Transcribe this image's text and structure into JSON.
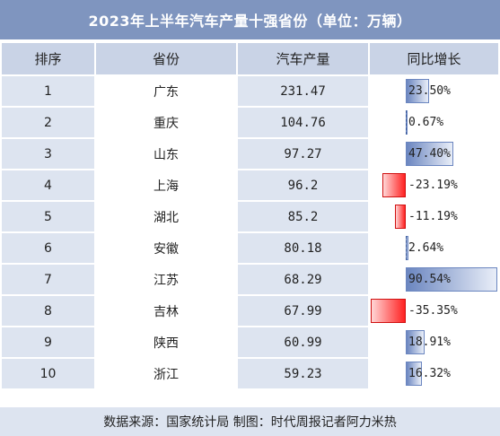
{
  "title": "2023年上半年汽车产量十强省份（单位：万辆）",
  "headers": {
    "rank": "排序",
    "province": "省份",
    "output": "汽车产量",
    "growth": "同比增长"
  },
  "chart_data": {
    "type": "table",
    "title": "2023年上半年汽车产量十强省份（单位：万辆）",
    "columns": [
      "排序",
      "省份",
      "汽车产量",
      "同比增长"
    ],
    "rows": [
      {
        "rank": "1",
        "province": "广东",
        "output": "231.47",
        "growth_label": "23.50%",
        "growth": 23.5
      },
      {
        "rank": "2",
        "province": "重庆",
        "output": "104.76",
        "growth_label": "0.67%",
        "growth": 0.67
      },
      {
        "rank": "3",
        "province": "山东",
        "output": "97.27",
        "growth_label": "47.40%",
        "growth": 47.4
      },
      {
        "rank": "4",
        "province": "上海",
        "output": "96.2",
        "growth_label": "-23.19%",
        "growth": -23.19
      },
      {
        "rank": "5",
        "province": "湖北",
        "output": "85.2",
        "growth_label": "-11.19%",
        "growth": -11.19
      },
      {
        "rank": "6",
        "province": "安徽",
        "output": "80.18",
        "growth_label": "2.64%",
        "growth": 2.64
      },
      {
        "rank": "7",
        "province": "江苏",
        "output": "68.29",
        "growth_label": "90.54%",
        "growth": 90.54
      },
      {
        "rank": "8",
        "province": "吉林",
        "output": "67.99",
        "growth_label": "-35.35%",
        "growth": -35.35
      },
      {
        "rank": "9",
        "province": "陕西",
        "output": "60.99",
        "growth_label": "18.91%",
        "growth": 18.91
      },
      {
        "rank": "10",
        "province": "浙江",
        "output": "59.23",
        "growth_label": "16.32%",
        "growth": 16.32
      }
    ],
    "colors": {
      "positive_bar": "#6b86c0",
      "negative_bar": "#ff2222",
      "header_bg": "#7f95bf",
      "column_header_bg": "#c9d3e6",
      "shaded_cell_bg": "#dde4f0"
    }
  },
  "footer": "数据来源：国家统计局 制图：时代周报记者阿力米热"
}
